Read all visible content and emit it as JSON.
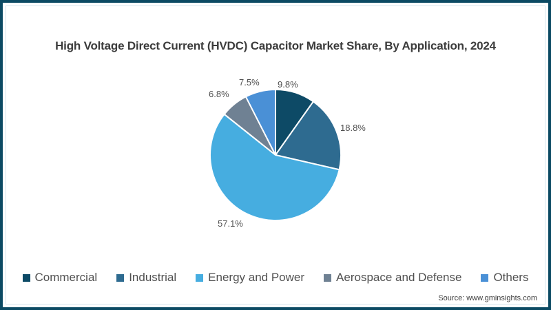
{
  "title": "High Voltage Direct Current (HVDC) Capacitor Market Share, By Application, 2024",
  "source": "Source: www.gminsights.com",
  "colors": {
    "frame": "#0b4a63",
    "commercial": "#0d4a66",
    "industrial": "#2e6b90",
    "energy_and_power": "#46ade0",
    "aerospace_and_defense": "#6f8193",
    "others": "#4a90d6"
  },
  "legend": [
    {
      "label": "Commercial",
      "color": "#0d4a66"
    },
    {
      "label": "Industrial",
      "color": "#2e6b90"
    },
    {
      "label": "Energy and Power",
      "color": "#46ade0"
    },
    {
      "label": "Aerospace and Defense",
      "color": "#6f8193"
    },
    {
      "label": "Others",
      "color": "#4a90d6"
    }
  ],
  "labels": {
    "commercial": "9.8%",
    "industrial": "18.8%",
    "energy_and_power": "57.1%",
    "aerospace_and_defense": "6.8%",
    "others": "7.5%"
  },
  "chart_data": {
    "type": "pie",
    "title": "High Voltage Direct Current (HVDC) Capacitor Market Share, By Application, 2024",
    "categories": [
      "Commercial",
      "Industrial",
      "Energy and Power",
      "Aerospace and Defense",
      "Others"
    ],
    "values": [
      9.8,
      18.8,
      57.1,
      6.8,
      7.5
    ],
    "unit": "%",
    "start_angle": "12 o'clock",
    "direction": "clockwise",
    "legend_position": "bottom",
    "source": "Source: www.gminsights.com"
  }
}
